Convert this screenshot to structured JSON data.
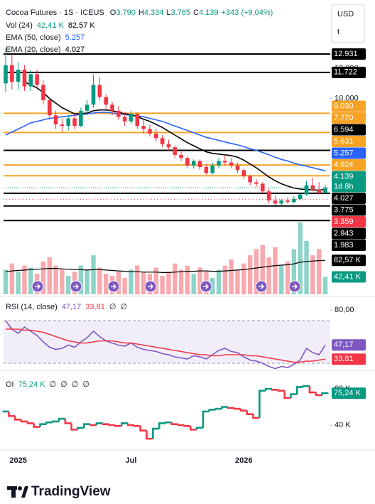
{
  "chart_data": [
    {
      "type": "candlestick",
      "title": "Cocoa Futures · 1S · ICEUS",
      "quote": [
        {
          "key": "O",
          "label": "3.790"
        },
        {
          "key": "H",
          "label": "4.334"
        },
        {
          "key": "L",
          "label": "3.765"
        },
        {
          "key": "C",
          "label": "4.139"
        }
      ],
      "change": "+343 (+9,04%)",
      "categories": [
        null,
        null,
        "2025",
        null,
        null,
        null,
        null,
        null,
        null,
        null,
        null,
        null,
        null,
        null,
        null,
        null,
        null,
        null,
        null,
        null,
        "Jul",
        null,
        null,
        null,
        null,
        null,
        null,
        null,
        null,
        null,
        null,
        null,
        null,
        null,
        null,
        null,
        null,
        null,
        "2026",
        null,
        null,
        null,
        null,
        null,
        null,
        null,
        null,
        null,
        null,
        null,
        null,
        null
      ],
      "open": [
        11,
        12.2,
        11.1,
        11.9,
        10.8,
        11.6,
        10.9,
        9.9,
        8.9,
        8.3,
        8.2,
        8.7,
        8.2,
        9.2,
        9.6,
        10.9,
        10.1,
        9.6,
        9.2,
        8.8,
        8.5,
        9,
        8.2,
        8,
        7.7,
        7.4,
        7,
        6.8,
        6.3,
        6.1,
        5.6,
        5.9,
        5.5,
        5.1,
        5.6,
        5.9,
        5.8,
        5.6,
        5.3,
        4.9,
        4.5,
        4.4,
        3.9,
        3.3,
        3.1,
        3.3,
        3.2,
        3.4,
        3.7,
        4.3,
        4,
        3.79
      ],
      "high": [
        13.3,
        12.9,
        12.4,
        12.2,
        11.9,
        11.9,
        11.2,
        10.1,
        9.2,
        8.7,
        8.9,
        9,
        9.4,
        9.9,
        11.6,
        11.4,
        10.3,
        9.8,
        9.5,
        9.1,
        9.2,
        9.1,
        8.6,
        8.3,
        8,
        7.6,
        7.3,
        6.9,
        6.5,
        6.2,
        6,
        6,
        5.7,
        5.8,
        6.1,
        6.3,
        6.1,
        5.8,
        5.4,
        5,
        4.7,
        4.5,
        4.1,
        3.6,
        3.4,
        3.5,
        3.6,
        3.8,
        4.6,
        4.8,
        4.5,
        4.334
      ],
      "low": [
        10.4,
        10.6,
        10.6,
        10.5,
        10.5,
        10.6,
        9.6,
        8.6,
        8,
        7.8,
        7.9,
        8,
        8.1,
        8.9,
        9.4,
        9.9,
        9.3,
        8.9,
        8.6,
        8.2,
        8.3,
        8,
        7.7,
        7.5,
        7.2,
        6.8,
        6.6,
        6.1,
        5.9,
        5.4,
        5.4,
        5.3,
        5,
        5,
        5.4,
        5.6,
        5.4,
        5.1,
        4.7,
        4.3,
        4.2,
        3.8,
        3.1,
        3,
        3,
        3.1,
        3.1,
        3.3,
        3.6,
        3.9,
        3.7,
        3.765
      ],
      "close": [
        12.2,
        11.1,
        11.9,
        10.8,
        11.6,
        10.9,
        9.9,
        8.9,
        8.3,
        8.2,
        8.7,
        8.2,
        9.2,
        9.6,
        10.9,
        10.1,
        9.6,
        9.2,
        8.8,
        8.5,
        9,
        8.2,
        8,
        7.7,
        7.4,
        7,
        6.8,
        6.3,
        6.1,
        5.6,
        5.9,
        5.5,
        5.1,
        5.6,
        5.9,
        5.8,
        5.6,
        5.3,
        4.9,
        4.5,
        4.4,
        3.9,
        3.3,
        3.1,
        3.3,
        3.2,
        3.4,
        3.7,
        4.3,
        4,
        3.79,
        4.139
      ],
      "up_color": "#089981",
      "down_color": "#f23645",
      "series": [
        {
          "name": "EMA (50, close)",
          "color": "#2962ff",
          "values": [
            7.6,
            7.8,
            8,
            8.2,
            8.4,
            8.5,
            8.6,
            8.7,
            8.75,
            8.8,
            8.85,
            8.9,
            8.95,
            9,
            9.05,
            9.1,
            9.1,
            9.05,
            9,
            8.95,
            8.9,
            8.85,
            8.8,
            8.7,
            8.6,
            8.5,
            8.35,
            8.2,
            8.05,
            7.9,
            7.75,
            7.6,
            7.45,
            7.35,
            7.25,
            7.15,
            7.05,
            6.95,
            6.85,
            6.7,
            6.6,
            6.45,
            6.3,
            6.15,
            6,
            5.9,
            5.75,
            5.65,
            5.55,
            5.45,
            5.35,
            5.257
          ]
        },
        {
          "name": "EMA (20, close)",
          "color": "#000000",
          "values": [
            null,
            null,
            null,
            11.1,
            10.9,
            10.7,
            10.4,
            10,
            9.7,
            9.4,
            9.2,
            9,
            9,
            9.05,
            9.2,
            9.25,
            9.25,
            9.2,
            9.1,
            9,
            8.95,
            8.8,
            8.65,
            8.5,
            8.3,
            8.1,
            7.85,
            7.6,
            7.35,
            7.1,
            6.9,
            6.7,
            6.5,
            6.4,
            6.35,
            6.3,
            6.25,
            6.15,
            5.95,
            5.7,
            5.45,
            5.15,
            4.85,
            4.6,
            4.4,
            4.25,
            4.12,
            4.05,
            4.02,
            4,
            3.98,
            4.027
          ]
        }
      ],
      "ylim": [
        1.62,
        16.48
      ],
      "yticks": [
        {
          "value": 12,
          "label": "12.000"
        },
        {
          "value": 10,
          "label": "10.000"
        }
      ],
      "levels": [
        {
          "value": 12.931,
          "color": "#000000"
        },
        {
          "value": 11.722,
          "color": "#000000"
        },
        {
          "value": 9.03,
          "label": "9.030",
          "color": "#f7a325"
        },
        {
          "value": 7.77,
          "label": "7.770",
          "color": "#f7a325"
        },
        {
          "value": 6.594,
          "color": "#000000"
        },
        {
          "value": 5.631,
          "color": "#f7a325"
        },
        {
          "value": 4.924,
          "color": "#f7a325"
        },
        {
          "value": 3.775,
          "color": "#000000"
        },
        {
          "value": 3.359,
          "color": "#f23645",
          "style": "dotted"
        },
        {
          "value": 2.943,
          "color": "#000000"
        },
        {
          "value": 1.983,
          "color": "#000000"
        }
      ],
      "countdown": "1d 8h"
    },
    {
      "type": "bar",
      "title": "Vol (24)",
      "series": [
        {
          "type": "bar",
          "up_color": "#8dd3c7",
          "down_color": "#f7a9ad",
          "values": [
            60,
            75,
            55,
            70,
            65,
            50,
            80,
            90,
            70,
            60,
            45,
            55,
            70,
            60,
            95,
            65,
            50,
            45,
            55,
            40,
            60,
            70,
            55,
            50,
            65,
            45,
            55,
            75,
            60,
            70,
            50,
            65,
            55,
            40,
            60,
            70,
            85,
            60,
            75,
            95,
            110,
            120,
            90,
            115,
            70,
            80,
            110,
            175,
            130,
            95,
            110,
            42.41
          ],
          "value_labels": [
            null,
            null,
            null,
            null,
            null,
            null,
            null,
            null,
            null,
            null,
            null,
            null,
            null,
            null,
            null,
            null,
            null,
            null,
            null,
            null,
            null,
            null,
            null,
            null,
            null,
            null,
            null,
            null,
            null,
            null,
            null,
            null,
            null,
            null,
            null,
            null,
            null,
            null,
            null,
            null,
            null,
            null,
            null,
            null,
            null,
            null,
            null,
            null,
            null,
            null,
            null,
            "42,41 K"
          ],
          "label_color": "#089981"
        },
        {
          "type": "line",
          "color": "#000000",
          "values": [
            55,
            57,
            58,
            59,
            60,
            61,
            62,
            63,
            63,
            62,
            61,
            60,
            60,
            59,
            60,
            60,
            59,
            58,
            57,
            56,
            55,
            55,
            54,
            54,
            54,
            53,
            53,
            54,
            55,
            56,
            56,
            57,
            57,
            56,
            56,
            57,
            58,
            59,
            60,
            62,
            64,
            66,
            68,
            70,
            71,
            72,
            74,
            78,
            80,
            81,
            82,
            82.57
          ],
          "value_labels": [
            null,
            null,
            null,
            null,
            null,
            null,
            null,
            null,
            null,
            null,
            null,
            null,
            null,
            null,
            null,
            null,
            null,
            null,
            null,
            null,
            null,
            null,
            null,
            null,
            null,
            null,
            null,
            null,
            null,
            null,
            null,
            null,
            null,
            null,
            null,
            null,
            null,
            null,
            null,
            null,
            null,
            null,
            null,
            null,
            null,
            null,
            null,
            null,
            null,
            null,
            null,
            "82,57 K"
          ]
        }
      ],
      "ylim": [
        0,
        180
      ]
    },
    {
      "type": "line",
      "title": "RSI (14, close)",
      "series": [
        {
          "color": "#7e57c2",
          "values": [
            70,
            62,
            58,
            64,
            60,
            56,
            50,
            45,
            43,
            44,
            47,
            45,
            50,
            54,
            60,
            55,
            51,
            49,
            47,
            46,
            49,
            45,
            43,
            42,
            41,
            39,
            38,
            36,
            35,
            34,
            37,
            36,
            34,
            38,
            42,
            44,
            41,
            40,
            36,
            33,
            32,
            30,
            27,
            25,
            27,
            26,
            29,
            33,
            44,
            40,
            38,
            47.17
          ],
          "value_labels": [
            null,
            null,
            null,
            null,
            null,
            null,
            null,
            null,
            null,
            null,
            null,
            null,
            null,
            null,
            null,
            null,
            null,
            null,
            null,
            null,
            null,
            null,
            null,
            null,
            null,
            null,
            null,
            null,
            null,
            null,
            null,
            null,
            null,
            null,
            null,
            null,
            null,
            null,
            null,
            null,
            null,
            null,
            null,
            null,
            null,
            null,
            null,
            null,
            null,
            null,
            null,
            "47,17"
          ]
        },
        {
          "color": "#f23645",
          "values": [
            62,
            62,
            62,
            61,
            61,
            60,
            59,
            57,
            55,
            53,
            51,
            50,
            49,
            49,
            50,
            51,
            51,
            51,
            50,
            49,
            49,
            48,
            47,
            46,
            45,
            44,
            43,
            42,
            41,
            40,
            39,
            38,
            38,
            37,
            37,
            38,
            38,
            38,
            38,
            37,
            37,
            36,
            35,
            34,
            33,
            32,
            31,
            31,
            32,
            32,
            33,
            33.81
          ],
          "value_labels": [
            null,
            null,
            null,
            null,
            null,
            null,
            null,
            null,
            null,
            null,
            null,
            null,
            null,
            null,
            null,
            null,
            null,
            null,
            null,
            null,
            null,
            null,
            null,
            null,
            null,
            null,
            null,
            null,
            null,
            null,
            null,
            null,
            null,
            null,
            null,
            null,
            null,
            null,
            null,
            null,
            null,
            null,
            null,
            null,
            null,
            null,
            null,
            null,
            null,
            null,
            null,
            "33,81"
          ]
        }
      ],
      "ylim": [
        25.33,
        89.33
      ],
      "yticks": [
        {
          "value": 80,
          "label": "80,00"
        }
      ],
      "bands": [
        30,
        70
      ],
      "legend_extra": [
        "∅",
        "∅"
      ]
    },
    {
      "type": "line",
      "step": true,
      "title": "OI",
      "series": [
        {
          "up_color": "#089981",
          "down_color": "#f23645",
          "values": [
            55,
            50,
            46,
            44,
            42,
            38,
            41,
            43,
            44,
            47,
            42,
            35,
            37,
            41,
            40,
            42,
            41,
            40,
            39,
            42,
            40,
            39,
            34,
            25,
            36,
            42,
            43,
            41,
            40,
            39,
            35,
            37,
            55,
            57,
            58,
            60,
            59,
            58,
            56,
            52,
            48,
            78,
            80,
            79,
            78,
            70,
            74,
            82,
            83,
            76,
            73,
            75.24
          ],
          "value_labels": [
            null,
            null,
            null,
            null,
            null,
            null,
            null,
            null,
            null,
            null,
            null,
            null,
            null,
            null,
            null,
            null,
            null,
            null,
            null,
            null,
            null,
            null,
            null,
            null,
            null,
            null,
            null,
            null,
            null,
            null,
            null,
            null,
            null,
            null,
            null,
            null,
            null,
            null,
            null,
            null,
            null,
            null,
            null,
            null,
            null,
            null,
            null,
            null,
            null,
            null,
            null,
            "75,24 K"
          ]
        }
      ],
      "ylim": [
        14.9,
        97.25
      ],
      "yticks": [
        {
          "value": 80,
          "label": "80 K"
        },
        {
          "value": 40,
          "label": "40 K"
        }
      ],
      "legend_extra": [
        "∅",
        "∅",
        "∅",
        "∅"
      ]
    }
  ],
  "currency": [
    "USD",
    "t"
  ],
  "brand": "TradingView"
}
